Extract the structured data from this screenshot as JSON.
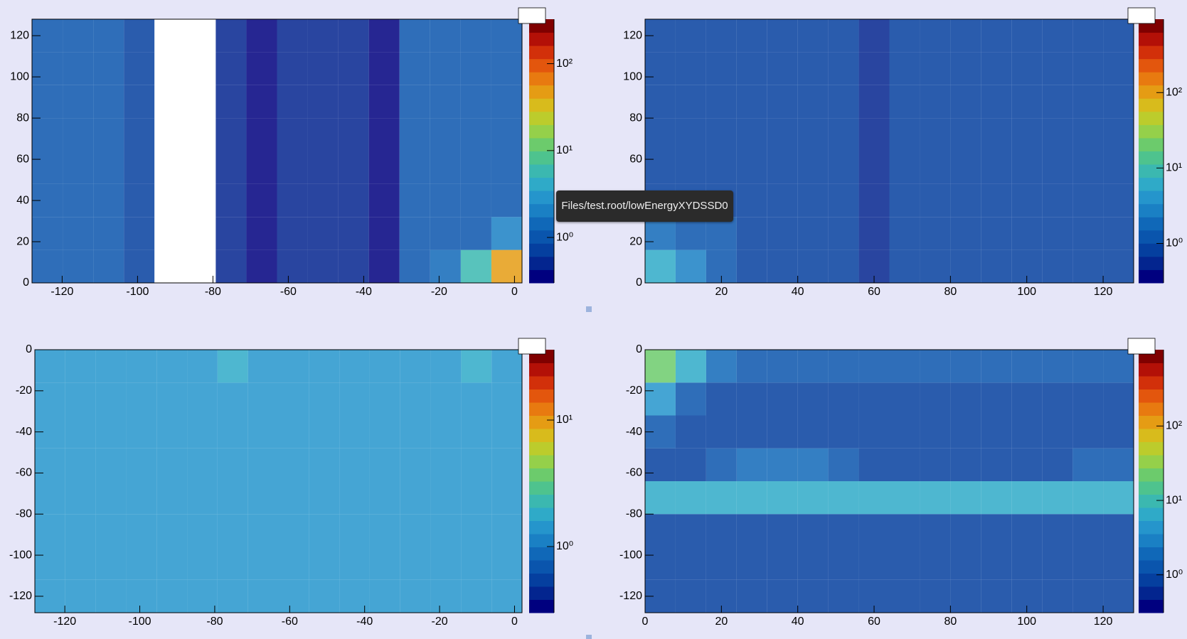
{
  "tooltip": "Files/test.root/lowEnergyXYDSSD0",
  "palette": [
    "#00007f",
    "#03258f",
    "#053f9f",
    "#0a55ad",
    "#1068b8",
    "#1a80c4",
    "#2595cc",
    "#2faac8",
    "#3bb8b0",
    "#4ec38e",
    "#6ccb6c",
    "#95d04a",
    "#bccc2c",
    "#d8bb1c",
    "#e59c14",
    "#e87a10",
    "#e3560d",
    "#d2300a",
    "#b31007",
    "#800000"
  ],
  "chart_data": [
    {
      "type": "heatmap",
      "xlim": [
        -128,
        2
      ],
      "ylim": [
        0,
        128
      ],
      "log_z": true,
      "xticks": [
        -120,
        -100,
        -80,
        -60,
        -40,
        -20,
        0
      ],
      "yticks": [
        0,
        20,
        40,
        60,
        80,
        100,
        120
      ],
      "zlim": [
        0.3,
        325
      ],
      "zticks": [
        {
          "value": 1,
          "label": "10⁰"
        },
        {
          "value": 10,
          "label": "10¹"
        },
        {
          "value": 100,
          "label": "10²"
        }
      ],
      "z": [
        [
          1,
          1,
          1,
          0.8,
          0,
          0,
          0.5,
          0.4,
          0.6,
          0.6,
          0.6,
          0.4,
          1,
          1.5,
          6,
          40
        ],
        [
          1,
          1,
          1,
          0.8,
          0,
          0,
          0.5,
          0.4,
          0.6,
          0.6,
          0.6,
          0.4,
          1,
          1,
          1.2,
          2
        ],
        [
          1,
          1,
          1,
          0.8,
          0,
          0,
          0.5,
          0.4,
          0.6,
          0.6,
          0.6,
          0.4,
          1,
          1,
          1,
          1.2
        ],
        [
          1,
          1,
          1,
          0.8,
          0,
          0,
          0.5,
          0.4,
          0.6,
          0.6,
          0.6,
          0.4,
          1,
          1,
          1,
          1.2
        ],
        [
          1,
          1,
          1,
          0.8,
          0,
          0,
          0.5,
          0.4,
          0.6,
          0.6,
          0.6,
          0.4,
          1,
          1,
          1,
          1.2
        ],
        [
          1,
          1,
          1,
          0.8,
          0,
          0,
          0.5,
          0.4,
          0.6,
          0.6,
          0.6,
          0.4,
          1,
          1,
          1,
          1.2
        ],
        [
          1,
          1,
          1,
          0.8,
          0,
          0,
          0.5,
          0.4,
          0.6,
          0.6,
          0.6,
          0.4,
          1,
          1,
          1,
          1.2
        ],
        [
          1,
          1,
          1,
          0.8,
          0,
          0,
          0.5,
          0.4,
          0.6,
          0.6,
          0.6,
          0.4,
          1,
          1,
          1,
          1.2
        ]
      ]
    },
    {
      "type": "heatmap",
      "xlim": [
        0,
        128
      ],
      "ylim": [
        0,
        128
      ],
      "log_z": true,
      "xticks": [
        20,
        40,
        60,
        80,
        100,
        120
      ],
      "yticks": [
        0,
        20,
        40,
        60,
        80,
        100,
        120
      ],
      "zlim": [
        0.3,
        940
      ],
      "zticks": [
        {
          "value": 1,
          "label": "10⁰"
        },
        {
          "value": 10,
          "label": "10¹"
        },
        {
          "value": 100,
          "label": "10²"
        }
      ],
      "z": [
        [
          6,
          3,
          1.5,
          1,
          1,
          1,
          1,
          0.5,
          1,
          1,
          1,
          1,
          1,
          1,
          1,
          1
        ],
        [
          2,
          1.5,
          1.2,
          1,
          1,
          1,
          1,
          0.5,
          1,
          1,
          1,
          1,
          1,
          1,
          1,
          1
        ],
        [
          1,
          1,
          1,
          1,
          1,
          1,
          1,
          0.5,
          1,
          1,
          1,
          1,
          1,
          1,
          1,
          1
        ],
        [
          1,
          1,
          1,
          1,
          1,
          1,
          1,
          0.5,
          1,
          1,
          1,
          1,
          1,
          1,
          1,
          1
        ],
        [
          1,
          1,
          1,
          1,
          1,
          1,
          1,
          0.5,
          1,
          1,
          1,
          1,
          1,
          1,
          1,
          1
        ],
        [
          1,
          1,
          1,
          1,
          1,
          1,
          1,
          0.5,
          1,
          1,
          1,
          1,
          1,
          1,
          1,
          1
        ],
        [
          1,
          1,
          1,
          1,
          1,
          1,
          1,
          0.5,
          1,
          1,
          1,
          1,
          1,
          1,
          1,
          1
        ],
        [
          1,
          1,
          1,
          1,
          1,
          1,
          1,
          0.5,
          1,
          1,
          1,
          1,
          1,
          1,
          1,
          1
        ]
      ]
    },
    {
      "type": "heatmap",
      "xlim": [
        -128,
        2
      ],
      "ylim": [
        -128,
        0
      ],
      "log_z": true,
      "xticks": [
        -120,
        -100,
        -80,
        -60,
        -40,
        -20,
        0
      ],
      "yticks": [
        0,
        -20,
        -40,
        -60,
        -80,
        -100,
        -120
      ],
      "zlim": [
        0.3,
        36
      ],
      "zticks": [
        {
          "value": 1,
          "label": "10⁰"
        },
        {
          "value": 10,
          "label": "10¹"
        }
      ],
      "z": [
        [
          1.5,
          1.5,
          1.5,
          1.5,
          1.5,
          1.5,
          1.5,
          1.5,
          1.5,
          1.5,
          1.5,
          1.5,
          1.5,
          1.5,
          1.5,
          1.5
        ],
        [
          1.5,
          1.5,
          1.5,
          1.5,
          1.5,
          1.5,
          1.5,
          1.5,
          1.5,
          1.5,
          1.5,
          1.5,
          1.5,
          1.5,
          1.5,
          1.5
        ],
        [
          1.5,
          1.5,
          1.5,
          1.5,
          1.5,
          1.5,
          1.5,
          1.5,
          1.5,
          1.5,
          1.5,
          1.5,
          1.5,
          1.5,
          1.5,
          1.5
        ],
        [
          1.5,
          1.5,
          1.5,
          1.5,
          1.5,
          1.5,
          1.5,
          1.5,
          1.5,
          1.5,
          1.5,
          1.5,
          1.5,
          1.5,
          1.5,
          1.5
        ],
        [
          1.5,
          1.5,
          1.5,
          1.5,
          1.5,
          1.5,
          1.5,
          1.5,
          1.5,
          1.5,
          1.5,
          1.5,
          1.5,
          1.5,
          1.5,
          1.5
        ],
        [
          1.5,
          1.5,
          1.5,
          1.5,
          1.5,
          1.5,
          1.5,
          1.5,
          1.5,
          1.5,
          1.5,
          1.5,
          1.5,
          1.5,
          1.5,
          1.5
        ],
        [
          1.5,
          1.5,
          1.5,
          1.5,
          1.5,
          1.5,
          1.5,
          1.5,
          1.5,
          1.5,
          1.5,
          1.5,
          1.5,
          1.5,
          1.5,
          1.5
        ],
        [
          1.5,
          1.5,
          1.5,
          1.5,
          1.5,
          1.5,
          2,
          1.5,
          1.5,
          1.5,
          1.5,
          1.5,
          1.5,
          1.5,
          2,
          1.5
        ]
      ]
    },
    {
      "type": "heatmap",
      "xlim": [
        0,
        128
      ],
      "ylim": [
        -128,
        0
      ],
      "log_z": true,
      "xticks": [
        0,
        20,
        40,
        60,
        80,
        100,
        120
      ],
      "yticks": [
        0,
        -20,
        -40,
        -60,
        -80,
        -100,
        -120
      ],
      "zlim": [
        0.31,
        1060
      ],
      "zticks": [
        {
          "value": 1,
          "label": "10⁰"
        },
        {
          "value": 10,
          "label": "10¹"
        },
        {
          "value": 100,
          "label": "10²"
        }
      ],
      "z": [
        [
          1,
          1,
          1,
          1,
          1,
          1,
          1,
          1,
          1,
          1,
          1,
          1,
          1,
          1,
          1,
          1
        ],
        [
          1,
          1,
          1,
          1,
          1,
          1,
          1,
          1,
          1,
          1,
          1,
          1,
          1,
          1,
          1,
          1
        ],
        [
          1,
          1,
          1,
          1,
          1,
          1,
          1,
          1,
          1,
          1,
          1,
          1,
          1,
          1,
          1,
          1
        ],
        [
          6,
          6,
          6,
          6,
          6,
          8,
          6,
          8,
          6,
          6,
          6,
          6,
          6,
          6,
          6,
          8
        ],
        [
          1,
          1,
          1.5,
          2,
          2,
          2,
          1.5,
          1,
          1,
          1,
          1,
          1,
          1,
          1,
          1.5,
          1.5
        ],
        [
          1.5,
          1,
          1,
          1,
          1,
          1,
          1,
          1,
          1,
          1,
          1,
          1,
          1,
          1,
          1,
          1
        ],
        [
          4,
          1.5,
          1,
          1,
          1,
          1,
          1,
          1,
          1,
          1,
          1,
          1,
          1,
          1,
          1,
          1
        ],
        [
          20,
          6,
          2,
          1.5,
          1.5,
          1.5,
          1.5,
          1.2,
          1.2,
          1.2,
          1.2,
          1.2,
          1.2,
          1.2,
          1.2,
          1.2
        ]
      ]
    }
  ]
}
